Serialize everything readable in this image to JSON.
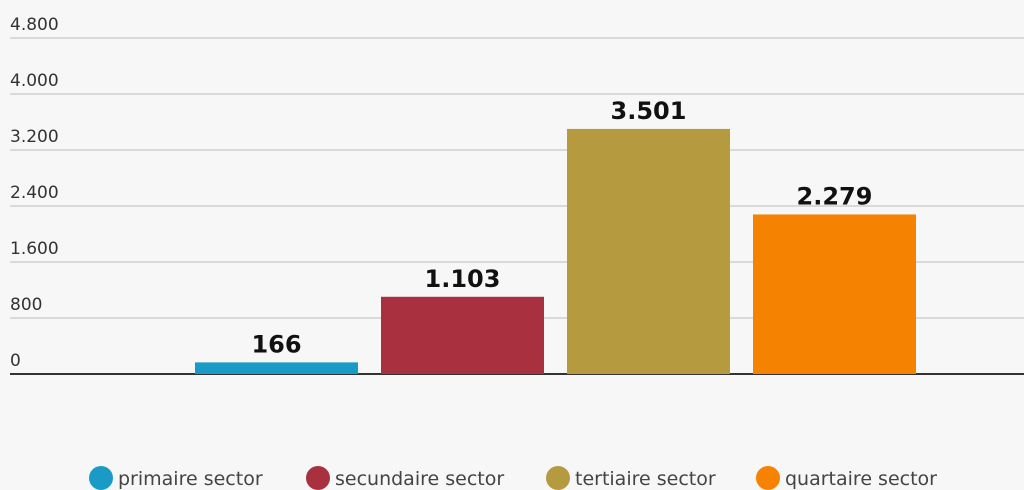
{
  "chart_data": {
    "type": "bar",
    "series": [
      {
        "name": "primaire sector",
        "color": "#1a9bc7",
        "values": [
          166
        ],
        "value_labels": [
          "166"
        ]
      },
      {
        "name": "secundaire sector",
        "color": "#a8303f",
        "values": [
          1103
        ],
        "value_labels": [
          "1.103"
        ]
      },
      {
        "name": "tertiaire sector",
        "color": "#b59a40",
        "values": [
          3501
        ],
        "value_labels": [
          "3.501"
        ]
      },
      {
        "name": "quartaire sector",
        "color": "#f58200",
        "values": [
          2279
        ],
        "value_labels": [
          "2.279"
        ]
      }
    ],
    "ylim": [
      0,
      4800
    ],
    "yticks": [
      0,
      800,
      {
        "value": 1600,
        "label": "1.600"
      },
      {
        "value": 2400,
        "label": "2.400"
      },
      {
        "value": 3200,
        "label": "3.200"
      },
      {
        "value": 4000,
        "label": "4.000"
      },
      {
        "value": 4800,
        "label": "4.800"
      }
    ],
    "grid": true
  }
}
